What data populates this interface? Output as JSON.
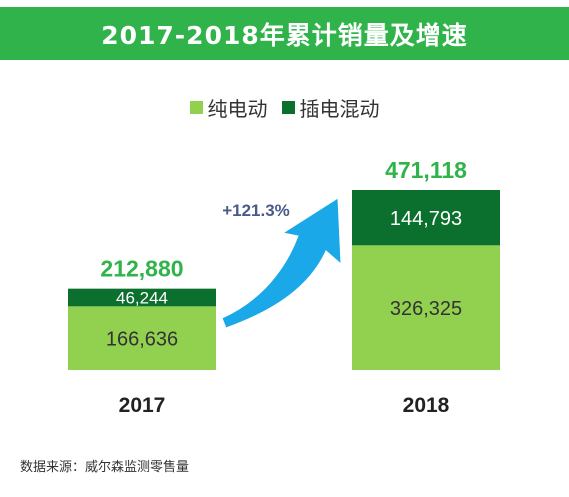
{
  "chart_data": {
    "type": "bar",
    "stacked": true,
    "title": "2017-2018年累计销量及增速",
    "categories": [
      "2017",
      "2018"
    ],
    "series": [
      {
        "name": "纯电动",
        "values": [
          166636,
          326325
        ],
        "color": "#92d050"
      },
      {
        "name": "插电混动",
        "values": [
          46244,
          144793
        ],
        "color": "#0b6f2e"
      }
    ],
    "totals": [
      "212,880",
      "471,118"
    ],
    "segment_labels": [
      [
        "166,636",
        "46,244"
      ],
      [
        "326,325",
        "144,793"
      ]
    ],
    "growth_label": "+121.3%",
    "legend_position": "top",
    "grid": false,
    "colors": {
      "total_label": "#2fb34a",
      "growth_label": "#4a5a8a",
      "arrow": "#1aa8e8",
      "title_bg": "#2fb34a"
    }
  },
  "source": "数据来源：威尔森监测零售量"
}
